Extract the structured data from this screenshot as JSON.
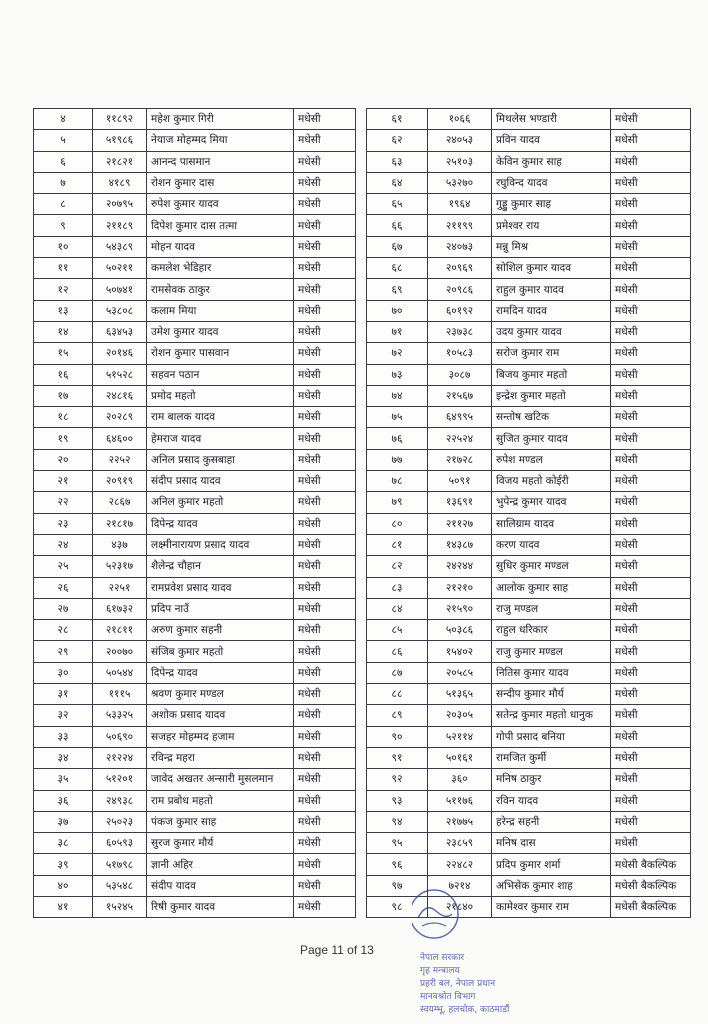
{
  "left_table": {
    "rows": [
      [
        "४",
        "११८९२",
        "महेश कुमार गिरी",
        "मधेसी"
      ],
      [
        "५",
        "५१९८६",
        "नेयाज मोहम्मद मिया",
        "मधेसी"
      ],
      [
        "६",
        "२१८२१",
        "आनन्द पासमान",
        "मधेसी"
      ],
      [
        "७",
        "४१८९",
        "रोशन कुमार दास",
        "मधेसी"
      ],
      [
        "८",
        "२०७९५",
        "रुपेश कुमार यादव",
        "मधेसी"
      ],
      [
        "९",
        "२११८९",
        "दिपेश कुमार दास तत्मा",
        "मधेसी"
      ],
      [
        "१०",
        "५४३८९",
        "मोहन यादव",
        "मधेसी"
      ],
      [
        "११",
        "५०२११",
        "कमलेश भेडिहार",
        "मधेसी"
      ],
      [
        "१२",
        "५०७४१",
        "रामसेवक ठाकुर",
        "मधेसी"
      ],
      [
        "१३",
        "५३८०८",
        "कलाम मिया",
        "मधेसी"
      ],
      [
        "१४",
        "६३४५३",
        "उमेश कुमार यादव",
        "मधेसी"
      ],
      [
        "१५",
        "२०१४६",
        "रोशन कुमार पासवान",
        "मधेसी"
      ],
      [
        "१६",
        "५१५२८",
        "सहवन पठान",
        "मधेसी"
      ],
      [
        "१७",
        "२४८१६",
        "प्रमोद महतो",
        "मधेसी"
      ],
      [
        "१८",
        "२०२८९",
        "राम बालक यादव",
        "मधेसी"
      ],
      [
        "१९",
        "६४६००",
        "हेमराज यादव",
        "मधेसी"
      ],
      [
        "२०",
        "२२५२",
        "अनिल प्रसाद कुसबाहा",
        "मधेसी"
      ],
      [
        "२१",
        "२०९१९",
        "संदीप प्रसाद यादव",
        "मधेसी"
      ],
      [
        "२२",
        "२८६७",
        "अनिल कुमार महतो",
        "मधेसी"
      ],
      [
        "२३",
        "२१८१७",
        "दिपेन्द्र यादव",
        "मधेसी"
      ],
      [
        "२४",
        "४३७",
        "लक्ष्मीनारायण प्रसाद यादव",
        "मधेसी"
      ],
      [
        "२५",
        "५२३१७",
        "शैलेन्द्र चौहान",
        "मधेसी"
      ],
      [
        "२६",
        "२२५१",
        "रामप्रवेश प्रसाद यादव",
        "मधेसी"
      ],
      [
        "२७",
        "६१७३२",
        "प्रदिप नाउँ",
        "मधेसी"
      ],
      [
        "२८",
        "२१८११",
        "अरुण कुमार सहनी",
        "मधेसी"
      ],
      [
        "२९",
        "२००७०",
        "संजिब कुमार महतो",
        "मधेसी"
      ],
      [
        "३०",
        "५०५४४",
        "दिपेन्द्र यादव",
        "मधेसी"
      ],
      [
        "३१",
        "१११५",
        "श्रवण कुमार मण्डल",
        "मधेसी"
      ],
      [
        "३२",
        "५३३२५",
        "अशोक प्रसाद यादव",
        "मधेसी"
      ],
      [
        "३३",
        "५०६९०",
        "सजहर मोहम्मद हजाम",
        "मधेसी"
      ],
      [
        "३४",
        "२१२२४",
        "रविन्द्र महरा",
        "मधेसी"
      ],
      [
        "३५",
        "५१२०१",
        "जावेद अखतर अन्सारी मुसलमान",
        "मधेसी"
      ],
      [
        "३६",
        "२४९३८",
        "राम प्रबोध महतो",
        "मधेसी"
      ],
      [
        "३७",
        "२५०२३",
        "पंकज कुमार साह",
        "मधेसी"
      ],
      [
        "३८",
        "६०५९३",
        "सुरज कुमार मौर्य",
        "मधेसी"
      ],
      [
        "३९",
        "५१७९८",
        "ज्ञानी अहिर",
        "मधेसी"
      ],
      [
        "४०",
        "५३५४८",
        "संदीप यादव",
        "मधेसी"
      ],
      [
        "४१",
        "१५२४५",
        "रिषी कुमार यादव",
        "मधेसी"
      ]
    ]
  },
  "right_table": {
    "rows": [
      [
        "६१",
        "१०६६",
        "मिथलेस भण्डारी",
        "मधेसी"
      ],
      [
        "६२",
        "२४०५३",
        "प्रविन यादव",
        "मधेसी"
      ],
      [
        "६३",
        "२५१०३",
        "केविन कुमार साह",
        "मधेसी"
      ],
      [
        "६४",
        "५३२७०",
        "रघुविन्द यादव",
        "मधेसी"
      ],
      [
        "६५",
        "१९६४",
        "गुड्डु कुमार साह",
        "मधेसी"
      ],
      [
        "६६",
        "२११९९",
        "प्रमेश्वर राय",
        "मधेसी"
      ],
      [
        "६७",
        "२४०७३",
        "मन्नु मिश्र",
        "मधेसी"
      ],
      [
        "६८",
        "२०९६९",
        "सोशिल कुमार यादव",
        "मधेसी"
      ],
      [
        "६९",
        "२०९८६",
        "राहुल कुमार यादव",
        "मधेसी"
      ],
      [
        "७०",
        "६०१९२",
        "रामदिन यादव",
        "मधेसी"
      ],
      [
        "७१",
        "२३७३८",
        "उदय कुमार यादव",
        "मधेसी"
      ],
      [
        "७२",
        "१०५८३",
        "सरोज कुमार राम",
        "मधेसी"
      ],
      [
        "७३",
        "३०८७",
        "बिजय कुमार महतो",
        "मधेसी"
      ],
      [
        "७४",
        "२१५६७",
        "इन्द्रेश कुमार महतो",
        "मधेसी"
      ],
      [
        "७५",
        "६४९९५",
        "सन्तोष खटिक",
        "मधेसी"
      ],
      [
        "७६",
        "२२५२४",
        "सुजित कुमार यादव",
        "मधेसी"
      ],
      [
        "७७",
        "२१७२८",
        "रुपेश मण्डल",
        "मधेसी"
      ],
      [
        "७८",
        "५०९१",
        "विजय महतो कोईरी",
        "मधेसी"
      ],
      [
        "७९",
        "१३६९१",
        "भुपेन्द्र कुमार यादव",
        "मधेसी"
      ],
      [
        "८०",
        "२११२७",
        "सालिग्राम यादव",
        "मधेसी"
      ],
      [
        "८१",
        "१४३८७",
        "करण यादव",
        "मधेसी"
      ],
      [
        "८२",
        "२४२४४",
        "सुधिर कुमार मण्डल",
        "मधेसी"
      ],
      [
        "८३",
        "२१२१०",
        "आलोक कुमार साह",
        "मधेसी"
      ],
      [
        "८४",
        "२१५९०",
        "राजु मण्डल",
        "मधेसी"
      ],
      [
        "८५",
        "५०३८६",
        "राहुल धरिकार",
        "मधेसी"
      ],
      [
        "८६",
        "१५४०२",
        "राजु कुमार मण्डल",
        "मधेसी"
      ],
      [
        "८७",
        "२०५८५",
        "नितिस कुमार यादव",
        "मधेसी"
      ],
      [
        "८८",
        "५१३६५",
        "सन्दीप कुमार मौर्य",
        "मधेसी"
      ],
      [
        "८९",
        "२०३०५",
        "सतेन्द्र कुमार महतो धानुक",
        "मधेसी"
      ],
      [
        "९०",
        "५२११४",
        "गोपी प्रसाद बनिया",
        "मधेसी"
      ],
      [
        "९१",
        "५०१६१",
        "रामजित कुर्मी",
        "मधेसी"
      ],
      [
        "९२",
        "३६०",
        "मनिष ठाकुर",
        "मधेसी"
      ],
      [
        "९३",
        "५११७६",
        "रविन यादव",
        "मधेसी"
      ],
      [
        "९४",
        "२१७७५",
        "हरेन्द्र सहनी",
        "मधेसी"
      ],
      [
        "९५",
        "२३८५९",
        "मनिष दास",
        "मधेसी"
      ],
      [
        "९६",
        "२२४८२",
        "प्रदिप कुमार शर्मा",
        "मधेसी बैकल्पिक"
      ],
      [
        "९७",
        "७२१४",
        "अभिसेक कुमार शाह",
        "मधेसी बैकल्पिक"
      ],
      [
        "९८",
        "२१८४०",
        "कामेश्वर कुमार राम",
        "मधेसी बैकल्पिक"
      ]
    ]
  },
  "footer": {
    "page_label": "Page 11 of 13"
  },
  "stamp": {
    "text": "नेपाल सरकार गृह मन्त्रालय सशस्त्र प्रहरी बल, नेपाल प्रधान कार्यालय मानवश्रोत विभाग स्वयम्भू, हलचोक, काठमाडौं",
    "color": "#2a3a8a"
  }
}
